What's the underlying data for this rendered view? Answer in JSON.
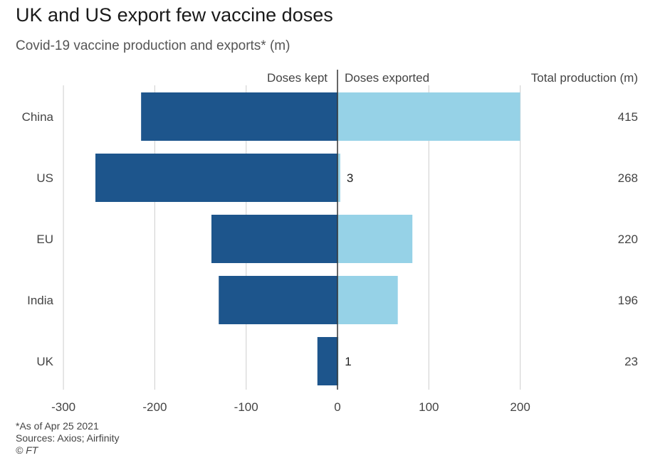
{
  "title": "UK and US export few vaccine doses",
  "subtitle": "Covid-19 vaccine production and exports* (m)",
  "colors": {
    "kept": "#1d558c",
    "exported": "#96d2e7",
    "grid": "#d6d6d6",
    "text": "#444444"
  },
  "chart_data": {
    "type": "bar",
    "orientation": "horizontal-diverging",
    "categories": [
      "China",
      "US",
      "EU",
      "India",
      "UK"
    ],
    "series": [
      {
        "name": "Doses kept",
        "values": [
          -215,
          -265,
          -138,
          -130,
          -22
        ]
      },
      {
        "name": "Doses exported",
        "values": [
          200,
          3,
          82,
          66,
          1
        ]
      }
    ],
    "total_header": "Total production (m)",
    "totals": [
      "415",
      "268",
      "220",
      "196",
      "23"
    ],
    "value_labels": [
      "",
      "3",
      "",
      "",
      "1"
    ],
    "xlim": [
      -300,
      200
    ],
    "xticks": [
      -300,
      -200,
      -100,
      0,
      100,
      200
    ],
    "xtick_labels": [
      "-300",
      "-200",
      "-100",
      "0",
      "100",
      "200"
    ],
    "grid": true
  },
  "footnotes": {
    "note": "*As of Apr 25 2021",
    "sources": "Sources: Axios; Airfinity",
    "credit": "© FT"
  }
}
